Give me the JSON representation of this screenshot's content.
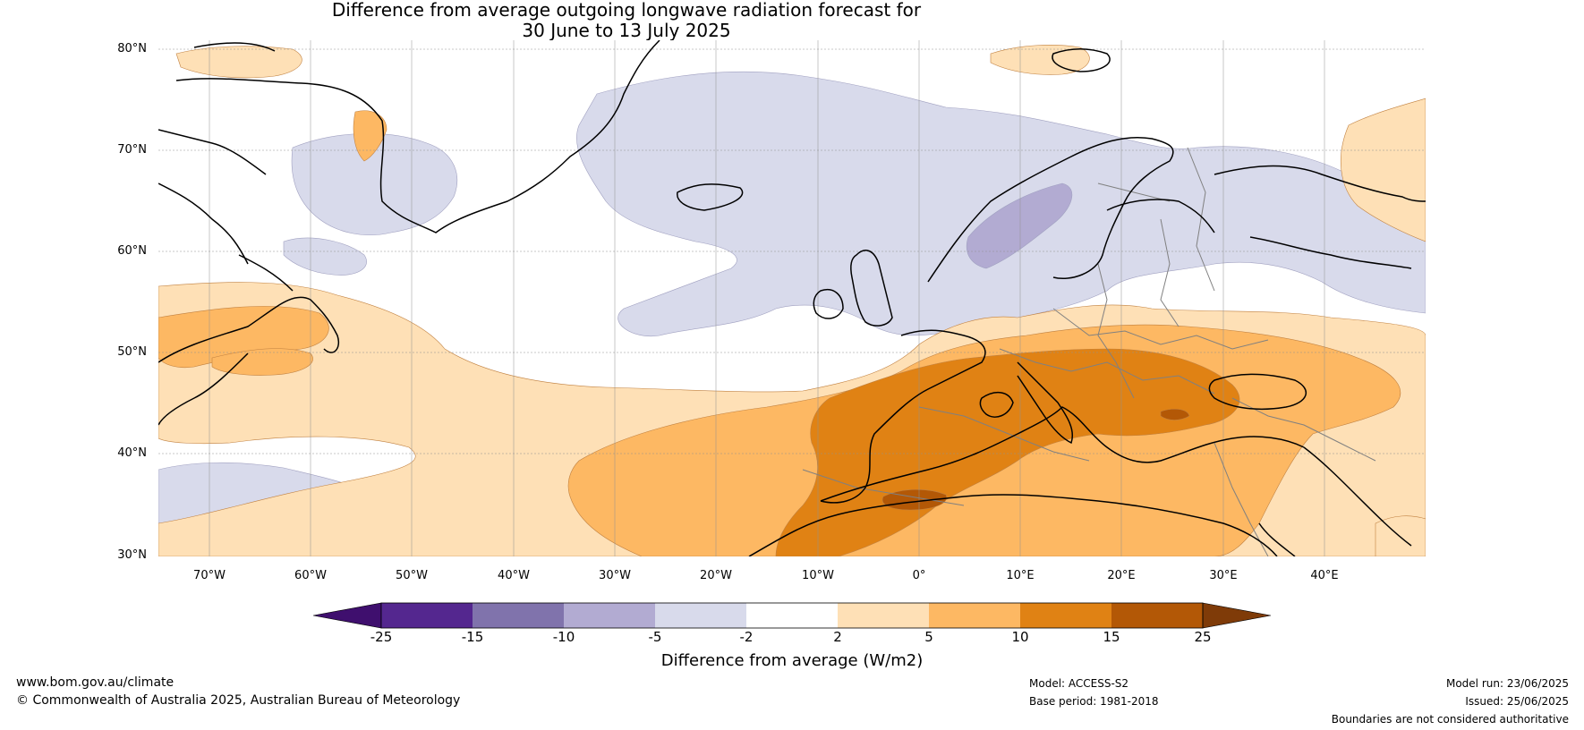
{
  "title": {
    "line1": "Difference from average outgoing longwave radiation forecast for",
    "line2": "30 June to 13 July 2025"
  },
  "map": {
    "lat_labels": [
      "80°N",
      "70°N",
      "60°N",
      "50°N",
      "40°N",
      "30°N"
    ],
    "lon_labels": [
      "70°W",
      "60°W",
      "50°W",
      "40°W",
      "30°W",
      "20°W",
      "10°W",
      "0°",
      "10°E",
      "20°E",
      "30°E",
      "40°E"
    ],
    "colors": {
      "coastline": "#000000",
      "borders": "#808080",
      "grid": "#808080"
    }
  },
  "colorbar": {
    "ticks": [
      "-25",
      "-15",
      "-10",
      "-5",
      "-2",
      "2",
      "5",
      "10",
      "15",
      "25"
    ],
    "colors": [
      "#3f0f6e",
      "#54278f",
      "#8073ac",
      "#b2abd2",
      "#d8daeb",
      "#ffffff",
      "#fee0b6",
      "#fdb863",
      "#e08214",
      "#b35806",
      "#7f3b08"
    ],
    "label": "Difference from average (W/m2)"
  },
  "footer": {
    "website": "www.bom.gov.au/climate",
    "copyright": "© Commonwealth of Australia 2025, Australian Bureau of Meteorology",
    "model": "Model: ACCESS-S2",
    "base_period": "Base period: 1981-2018",
    "model_run": "Model run: 23/06/2025",
    "issued": "Issued: 25/06/2025",
    "disclaimer": "Boundaries are not considered authoritative"
  }
}
